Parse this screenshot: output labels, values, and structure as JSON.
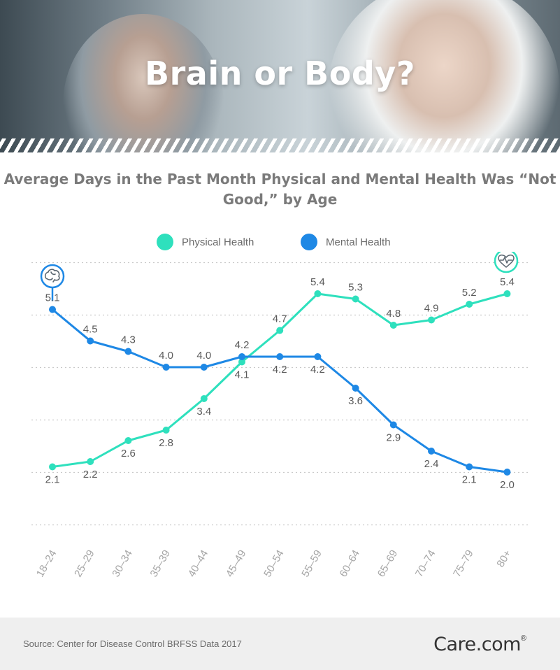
{
  "header": {
    "title": "Brain or Body?"
  },
  "chart_data": {
    "type": "line",
    "title": "Average Days in the Past Month Physical and Mental Health Was “Not Good,” by Age",
    "categories": [
      "18–24",
      "25–29",
      "30–34",
      "35–39",
      "40–44",
      "45–49",
      "50–54",
      "55–59",
      "60–64",
      "65–69",
      "70–74",
      "75–79",
      "80+"
    ],
    "series": [
      {
        "name": "Physical Health",
        "color": "#2ee0bd",
        "icon": "heart-monitor-icon",
        "values": [
          2.1,
          2.2,
          2.6,
          2.8,
          3.4,
          4.1,
          4.7,
          5.4,
          5.3,
          4.8,
          4.9,
          5.2,
          5.4
        ]
      },
      {
        "name": "Mental Health",
        "color": "#1e88e5",
        "icon": "brain-icon",
        "values": [
          5.1,
          4.5,
          4.3,
          4.0,
          4.0,
          4.2,
          4.2,
          4.2,
          3.6,
          2.9,
          2.4,
          2.1,
          2.0
        ]
      }
    ],
    "ylim": [
      1,
      6
    ],
    "grid": true,
    "legend_position": "top-center"
  },
  "footer": {
    "source": "Source: Center for Disease Control BRFSS Data 2017",
    "brand": "Care.com",
    "brand_mark": "®"
  }
}
